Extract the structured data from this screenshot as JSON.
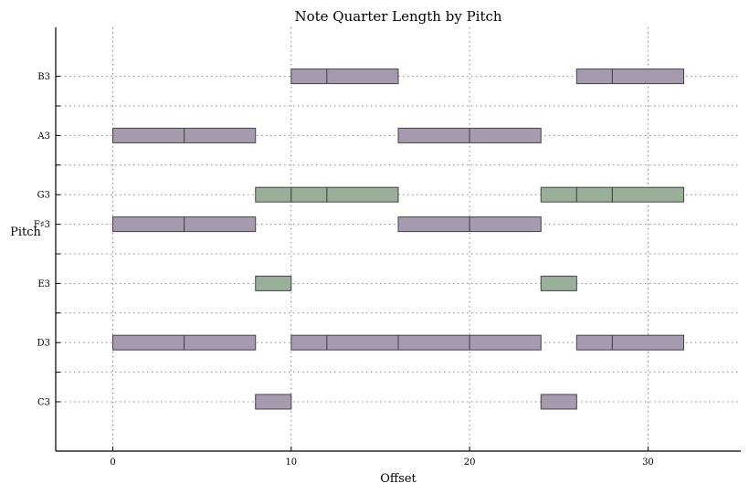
{
  "chart_data": {
    "type": "bar",
    "title": "Note Quarter Length by Pitch",
    "xlabel": "Offset",
    "ylabel": "Pitch",
    "xlim": [
      -3.2,
      35.2
    ],
    "x_ticks": [
      0,
      10,
      20,
      30
    ],
    "x_tick_labels": [
      "0",
      "10",
      "20",
      "30"
    ],
    "grid": true,
    "pitches": [
      {
        "label": "C3",
        "value": 48
      },
      {
        "label": "D3",
        "value": 50
      },
      {
        "label": "E3",
        "value": 52
      },
      {
        "label": "F♯3",
        "value": 54
      },
      {
        "label": "G3",
        "value": 55
      },
      {
        "label": "A3",
        "value": 57
      },
      {
        "label": "B3",
        "value": 59
      }
    ],
    "minor_pitch_ticks": [
      49,
      51,
      53,
      56,
      58
    ],
    "colors": {
      "purple": "#a59aae",
      "green": "#9aaf9a"
    },
    "notes": [
      {
        "pitch": 59,
        "start": 10,
        "length": 2,
        "color": "purple"
      },
      {
        "pitch": 59,
        "start": 12,
        "length": 4,
        "color": "purple"
      },
      {
        "pitch": 59,
        "start": 26,
        "length": 2,
        "color": "purple"
      },
      {
        "pitch": 59,
        "start": 28,
        "length": 4,
        "color": "purple"
      },
      {
        "pitch": 57,
        "start": 0,
        "length": 4,
        "color": "purple"
      },
      {
        "pitch": 57,
        "start": 4,
        "length": 4,
        "color": "purple"
      },
      {
        "pitch": 57,
        "start": 16,
        "length": 4,
        "color": "purple"
      },
      {
        "pitch": 57,
        "start": 20,
        "length": 4,
        "color": "purple"
      },
      {
        "pitch": 55,
        "start": 8,
        "length": 2,
        "color": "green"
      },
      {
        "pitch": 55,
        "start": 10,
        "length": 2,
        "color": "green"
      },
      {
        "pitch": 55,
        "start": 12,
        "length": 4,
        "color": "green"
      },
      {
        "pitch": 55,
        "start": 24,
        "length": 2,
        "color": "green"
      },
      {
        "pitch": 55,
        "start": 26,
        "length": 2,
        "color": "green"
      },
      {
        "pitch": 55,
        "start": 28,
        "length": 4,
        "color": "green"
      },
      {
        "pitch": 54,
        "start": 0,
        "length": 4,
        "color": "purple"
      },
      {
        "pitch": 54,
        "start": 4,
        "length": 4,
        "color": "purple"
      },
      {
        "pitch": 54,
        "start": 16,
        "length": 4,
        "color": "purple"
      },
      {
        "pitch": 54,
        "start": 20,
        "length": 4,
        "color": "purple"
      },
      {
        "pitch": 52,
        "start": 8,
        "length": 2,
        "color": "green"
      },
      {
        "pitch": 52,
        "start": 24,
        "length": 2,
        "color": "green"
      },
      {
        "pitch": 50,
        "start": 0,
        "length": 4,
        "color": "purple"
      },
      {
        "pitch": 50,
        "start": 4,
        "length": 4,
        "color": "purple"
      },
      {
        "pitch": 50,
        "start": 10,
        "length": 2,
        "color": "purple"
      },
      {
        "pitch": 50,
        "start": 12,
        "length": 4,
        "color": "purple"
      },
      {
        "pitch": 50,
        "start": 16,
        "length": 4,
        "color": "purple"
      },
      {
        "pitch": 50,
        "start": 20,
        "length": 4,
        "color": "purple"
      },
      {
        "pitch": 50,
        "start": 26,
        "length": 2,
        "color": "purple"
      },
      {
        "pitch": 50,
        "start": 28,
        "length": 4,
        "color": "purple"
      },
      {
        "pitch": 48,
        "start": 8,
        "length": 2,
        "color": "purple"
      },
      {
        "pitch": 48,
        "start": 24,
        "length": 2,
        "color": "purple"
      }
    ]
  }
}
